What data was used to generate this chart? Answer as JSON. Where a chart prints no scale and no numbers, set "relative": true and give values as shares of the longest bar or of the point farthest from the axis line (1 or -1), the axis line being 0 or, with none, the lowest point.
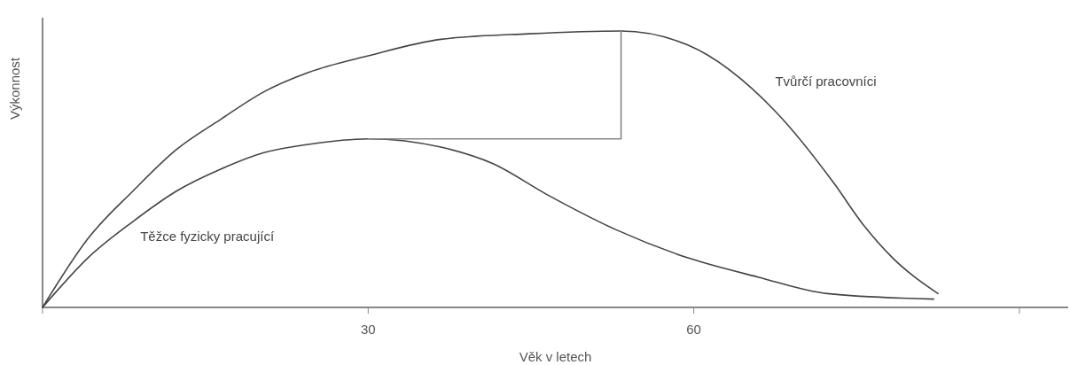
{
  "chart_data": {
    "type": "line",
    "relative": true,
    "xlabel": "Věk v letech",
    "ylabel": "Výkonnost",
    "xlim": [
      0,
      94.5
    ],
    "xticks": [
      {
        "value": 0,
        "label": null
      },
      30,
      60,
      {
        "value": 90,
        "label": null
      }
    ],
    "grid": false,
    "marker": "none",
    "line_style": "solid",
    "series": [
      {
        "name": "Tvůrčí pracovníci",
        "color": "#444444",
        "x": [
          0,
          4.2,
          8.3,
          12.3,
          16.4,
          20.4,
          24.5,
          30,
          36.7,
          44.8,
          53.3,
          59.4,
          67.5,
          72.9,
          75.6,
          78.3,
          82.5
        ],
        "values": [
          0,
          0.25,
          0.42,
          0.57,
          0.68,
          0.78,
          0.85,
          0.91,
          0.97,
          0.99,
          1,
          0.95,
          0.71,
          0.45,
          0.3,
          0.18,
          0.05
        ]
      },
      {
        "name": "Těžce fyzicky pracující",
        "color": "#444444",
        "x": [
          0,
          4.2,
          8.3,
          12.3,
          16.4,
          20.4,
          24.5,
          30,
          36.7,
          41.5,
          46.4,
          52.9,
          59.4,
          65.9,
          72.3,
          82.1
        ],
        "values": [
          0,
          0.18,
          0.31,
          0.42,
          0.5,
          0.56,
          0.59,
          0.61,
          0.58,
          0.52,
          0.41,
          0.28,
          0.18,
          0.11,
          0.05,
          0.03
        ]
      },
      {
        "color": "#888888",
        "x": [
          30,
          53.3,
          53.3
        ],
        "values": [
          0.61,
          0.61,
          1
        ]
      }
    ]
  }
}
